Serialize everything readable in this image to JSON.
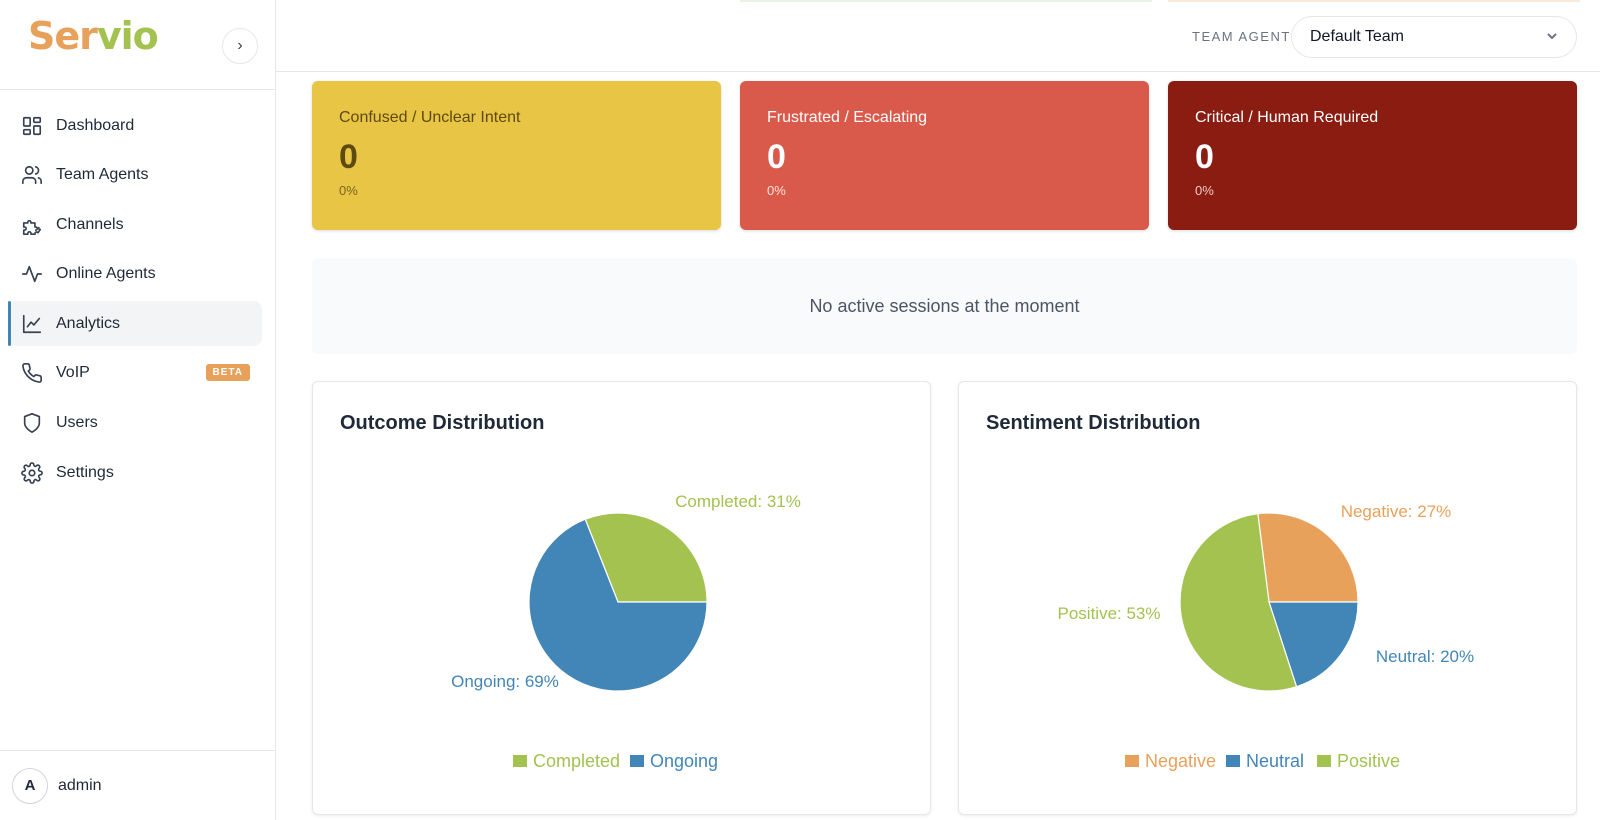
{
  "sidebar": {
    "logo": {
      "part1": "Ser",
      "part2": "vio"
    },
    "collapse_icon": "›",
    "items": [
      {
        "label": "Dashboard",
        "icon": "grid-icon"
      },
      {
        "label": "Team Agents",
        "icon": "users-icon"
      },
      {
        "label": "Channels",
        "icon": "puzzle-icon"
      },
      {
        "label": "Online Agents",
        "icon": "activity-icon"
      },
      {
        "label": "Analytics",
        "icon": "chart-line-icon",
        "active": true
      },
      {
        "label": "VoIP",
        "icon": "phone-icon",
        "badge": "BETA"
      },
      {
        "label": "Users",
        "icon": "shield-icon"
      },
      {
        "label": "Settings",
        "icon": "gear-icon"
      }
    ],
    "user": {
      "initial": "A",
      "name": "admin"
    }
  },
  "header": {
    "team_label": "TEAM AGENT",
    "team_value": "Default Team"
  },
  "stats": [
    {
      "title": "Confused / Unclear Intent",
      "value": "0",
      "pct": "0%",
      "color": "#e8c545"
    },
    {
      "title": "Frustrated / Escalating",
      "value": "0",
      "pct": "0%",
      "color": "#d95a4a"
    },
    {
      "title": "Critical / Human Required",
      "value": "0",
      "pct": "0%",
      "color": "#8a1c12"
    }
  ],
  "sessions_message": "No active sessions at the moment",
  "colors": {
    "green": "#a3c250",
    "blue": "#4286b8",
    "orange": "#e8a15b"
  },
  "chart_data": [
    {
      "type": "pie",
      "title": "Outcome Distribution",
      "categories": [
        "Completed",
        "Ongoing"
      ],
      "values": [
        31,
        69
      ],
      "labels": [
        "Completed: 31%",
        "Ongoing: 69%"
      ],
      "colors": [
        "#a3c250",
        "#4286b8"
      ],
      "legend": "bottom"
    },
    {
      "type": "pie",
      "title": "Sentiment Distribution",
      "categories": [
        "Negative",
        "Neutral",
        "Positive"
      ],
      "values": [
        27,
        20,
        53
      ],
      "labels": [
        "Negative: 27%",
        "Neutral: 20%",
        "Positive: 53%"
      ],
      "colors": [
        "#e8a15b",
        "#4286b8",
        "#a3c250"
      ],
      "legend": "bottom"
    }
  ]
}
